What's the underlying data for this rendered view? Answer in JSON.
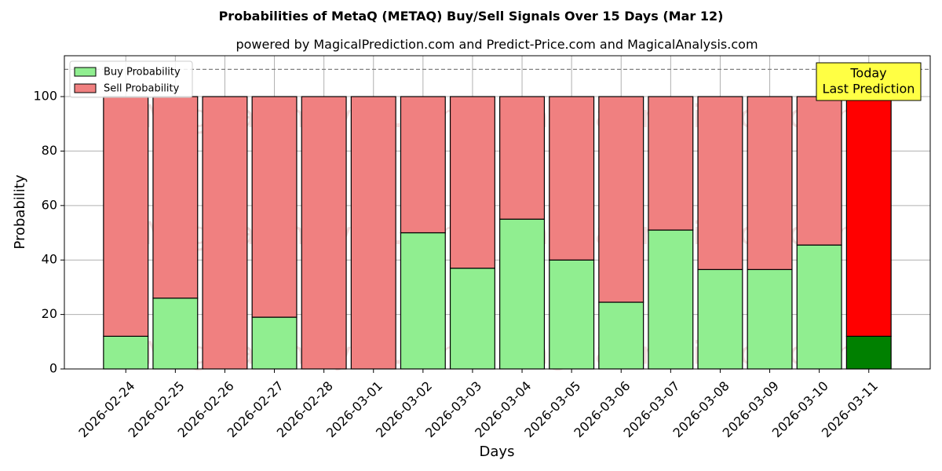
{
  "chart_data": {
    "type": "bar",
    "stacked": true,
    "title": "Probabilities of MetaQ (METAQ) Buy/Sell Signals Over 15 Days (Mar 12)",
    "subtitle": "powered by MagicalPrediction.com and Predict-Price.com and MagicalAnalysis.com",
    "xlabel": "Days",
    "ylabel": "Probability",
    "ylim": [
      0,
      115
    ],
    "yticks": [
      0,
      20,
      40,
      60,
      80,
      100
    ],
    "grid": true,
    "legend_position": "top-left",
    "reference_line": 110,
    "categories": [
      "2026-02-24",
      "2026-02-25",
      "2026-02-26",
      "2026-02-27",
      "2026-02-28",
      "2026-03-01",
      "2026-03-02",
      "2026-03-03",
      "2026-03-04",
      "2026-03-05",
      "2026-03-06",
      "2026-03-07",
      "2026-03-08",
      "2026-03-09",
      "2026-03-10",
      "2026-03-11"
    ],
    "series": [
      {
        "name": "Buy Probability",
        "color": "#90ee90",
        "highlight_color": "#008000",
        "values": [
          12,
          26,
          0,
          19,
          0,
          0,
          50,
          37,
          55,
          40,
          24.5,
          51,
          36.5,
          36.5,
          45.5,
          12
        ]
      },
      {
        "name": "Sell Probability",
        "color": "#f08080",
        "highlight_color": "#ff0000",
        "values": [
          88,
          74,
          100,
          81,
          100,
          100,
          50,
          63,
          45,
          60,
          75.5,
          49,
          63.5,
          63.5,
          54.5,
          88
        ]
      }
    ],
    "highlight_index": 15,
    "annotation": {
      "lines": [
        "Today",
        "Last Prediction"
      ],
      "background": "#ffff44"
    },
    "watermarks": [
      "MagicalAnalysis.com",
      "MagicalPrediction.com"
    ]
  }
}
